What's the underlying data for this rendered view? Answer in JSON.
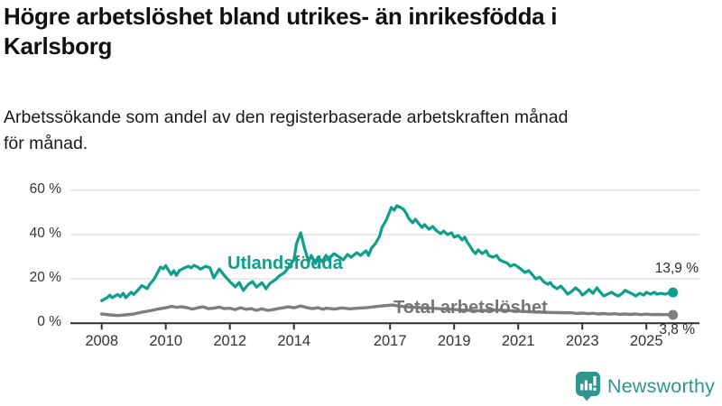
{
  "header": {
    "title_lines": [
      "Högre arbetslöshet bland utrikes- än inrikesfödda i",
      "Karlsborg"
    ],
    "title_text": "Högre arbetslöshet bland utrikes- än inrikesfödda i Karlsborg",
    "subtitle_lines": [
      "Arbetssökande som andel av den registerbaserade arbetskraften månad",
      "för månad."
    ],
    "subtitle_text": "Arbetssökande som andel av den registerbaserade arbetskraften månad för månad."
  },
  "branding": {
    "logo_text": "Newsworthy",
    "logo_icon": "bar-chart-speech-bubble-icon",
    "logo_color": "#2E968C"
  },
  "colors": {
    "accent_teal": "#0D9E8C",
    "line_gray": "#7E7E7E",
    "label_gray": "#757575",
    "axis": "#2e2e2e",
    "gridline": "#dcdcdc",
    "text": "#333333",
    "title": "#111111",
    "background": "#ffffff"
  },
  "chart_data": {
    "type": "line",
    "title": "Högre arbetslöshet bland utrikes- än inrikesfödda i Karlsborg",
    "subtitle": "Arbetssökande som andel av den registerbaserade arbetskraften månad för månad.",
    "unit": "%",
    "grid": "horizontal",
    "legend": "inline-labels",
    "x_axis": {
      "ticks": [
        2008,
        2010,
        2012,
        2014,
        2017,
        2019,
        2021,
        2023,
        2025
      ],
      "range": [
        2008,
        2025.9
      ]
    },
    "y_axis": {
      "ticks": [
        {
          "value": 0,
          "label": "0 %"
        },
        {
          "value": 20,
          "label": "20 %"
        },
        {
          "value": 40,
          "label": "40 %"
        },
        {
          "value": 60,
          "label": "60 %"
        }
      ],
      "range": [
        0,
        60
      ]
    },
    "series": [
      {
        "name": "Utlandsfödda",
        "color": "#0D9E8C",
        "end_label": "13,9 %",
        "end_value": 13.9,
        "points": [
          [
            2008.0,
            10.2
          ],
          [
            2008.17,
            11.5
          ],
          [
            2008.25,
            12.7
          ],
          [
            2008.33,
            11.5
          ],
          [
            2008.5,
            13.0
          ],
          [
            2008.58,
            12.0
          ],
          [
            2008.67,
            13.5
          ],
          [
            2008.75,
            11.5
          ],
          [
            2008.92,
            14.0
          ],
          [
            2009.0,
            13.0
          ],
          [
            2009.17,
            15.6
          ],
          [
            2009.25,
            17.0
          ],
          [
            2009.42,
            15.6
          ],
          [
            2009.5,
            17.6
          ],
          [
            2009.62,
            19.6
          ],
          [
            2009.75,
            22.9
          ],
          [
            2009.83,
            25.3
          ],
          [
            2009.92,
            24.6
          ],
          [
            2010.0,
            26.0
          ],
          [
            2010.08,
            24.0
          ],
          [
            2010.17,
            22.0
          ],
          [
            2010.25,
            23.7
          ],
          [
            2010.33,
            21.6
          ],
          [
            2010.42,
            23.7
          ],
          [
            2010.58,
            25.0
          ],
          [
            2010.71,
            25.7
          ],
          [
            2010.79,
            25.0
          ],
          [
            2010.88,
            26.1
          ],
          [
            2011.0,
            25.3
          ],
          [
            2011.08,
            24.4
          ],
          [
            2011.25,
            25.7
          ],
          [
            2011.38,
            25.0
          ],
          [
            2011.5,
            20.5
          ],
          [
            2011.67,
            24.5
          ],
          [
            2011.83,
            21.5
          ],
          [
            2012.0,
            18.8
          ],
          [
            2012.17,
            16.4
          ],
          [
            2012.29,
            18.4
          ],
          [
            2012.42,
            14.8
          ],
          [
            2012.58,
            17.6
          ],
          [
            2012.71,
            18.8
          ],
          [
            2012.83,
            16.3
          ],
          [
            2013.0,
            18.3
          ],
          [
            2013.13,
            15.6
          ],
          [
            2013.25,
            18.0
          ],
          [
            2013.42,
            19.6
          ],
          [
            2013.54,
            21.3
          ],
          [
            2013.71,
            22.9
          ],
          [
            2013.83,
            25.3
          ],
          [
            2014.0,
            28.6
          ],
          [
            2014.08,
            35.9
          ],
          [
            2014.21,
            40.8
          ],
          [
            2014.33,
            33.9
          ],
          [
            2014.46,
            27.8
          ],
          [
            2014.54,
            30.6
          ],
          [
            2014.67,
            27.0
          ],
          [
            2014.75,
            29.8
          ],
          [
            2014.88,
            27.8
          ],
          [
            2015.0,
            30.6
          ],
          [
            2015.08,
            29.0
          ],
          [
            2015.25,
            31.4
          ],
          [
            2015.42,
            29.8
          ],
          [
            2015.54,
            28.6
          ],
          [
            2015.67,
            31.0
          ],
          [
            2015.79,
            29.8
          ],
          [
            2015.96,
            31.8
          ],
          [
            2016.08,
            30.6
          ],
          [
            2016.25,
            32.7
          ],
          [
            2016.33,
            30.6
          ],
          [
            2016.42,
            33.9
          ],
          [
            2016.54,
            35.9
          ],
          [
            2016.67,
            39.2
          ],
          [
            2016.75,
            43.2
          ],
          [
            2016.88,
            46.5
          ],
          [
            2016.96,
            49.3
          ],
          [
            2017.04,
            52.2
          ],
          [
            2017.13,
            51.0
          ],
          [
            2017.21,
            53.0
          ],
          [
            2017.33,
            52.2
          ],
          [
            2017.42,
            51.4
          ],
          [
            2017.5,
            49.8
          ],
          [
            2017.58,
            47.3
          ],
          [
            2017.71,
            45.3
          ],
          [
            2017.79,
            46.9
          ],
          [
            2017.92,
            44.5
          ],
          [
            2018.0,
            43.2
          ],
          [
            2018.08,
            44.5
          ],
          [
            2018.21,
            42.4
          ],
          [
            2018.33,
            43.6
          ],
          [
            2018.46,
            41.6
          ],
          [
            2018.58,
            40.4
          ],
          [
            2018.67,
            41.6
          ],
          [
            2018.79,
            40.0
          ],
          [
            2018.92,
            40.8
          ],
          [
            2019.0,
            38.8
          ],
          [
            2019.13,
            39.6
          ],
          [
            2019.25,
            37.6
          ],
          [
            2019.33,
            38.8
          ],
          [
            2019.42,
            36.3
          ],
          [
            2019.5,
            34.7
          ],
          [
            2019.58,
            32.7
          ],
          [
            2019.67,
            31.4
          ],
          [
            2019.75,
            33.1
          ],
          [
            2019.88,
            31.4
          ],
          [
            2020.0,
            32.7
          ],
          [
            2020.08,
            30.6
          ],
          [
            2020.21,
            29.8
          ],
          [
            2020.33,
            30.6
          ],
          [
            2020.42,
            28.6
          ],
          [
            2020.54,
            27.8
          ],
          [
            2020.67,
            27.0
          ],
          [
            2020.75,
            25.7
          ],
          [
            2020.88,
            26.5
          ],
          [
            2021.0,
            25.3
          ],
          [
            2021.08,
            24.5
          ],
          [
            2021.21,
            22.9
          ],
          [
            2021.33,
            23.7
          ],
          [
            2021.46,
            21.6
          ],
          [
            2021.54,
            20.0
          ],
          [
            2021.67,
            20.8
          ],
          [
            2021.79,
            18.8
          ],
          [
            2021.92,
            17.6
          ],
          [
            2022.0,
            18.4
          ],
          [
            2022.08,
            16.8
          ],
          [
            2022.21,
            15.6
          ],
          [
            2022.33,
            16.8
          ],
          [
            2022.46,
            14.7
          ],
          [
            2022.54,
            13.1
          ],
          [
            2022.67,
            14.4
          ],
          [
            2022.79,
            16.0
          ],
          [
            2022.92,
            14.4
          ],
          [
            2023.0,
            12.7
          ],
          [
            2023.08,
            13.5
          ],
          [
            2023.21,
            15.2
          ],
          [
            2023.33,
            13.5
          ],
          [
            2023.46,
            16.0
          ],
          [
            2023.54,
            14.4
          ],
          [
            2023.67,
            12.3
          ],
          [
            2023.79,
            13.1
          ],
          [
            2023.92,
            14.0
          ],
          [
            2024.0,
            13.1
          ],
          [
            2024.13,
            12.3
          ],
          [
            2024.25,
            13.5
          ],
          [
            2024.33,
            14.8
          ],
          [
            2024.46,
            14.0
          ],
          [
            2024.58,
            13.1
          ],
          [
            2024.67,
            12.3
          ],
          [
            2024.79,
            13.5
          ],
          [
            2024.92,
            12.7
          ],
          [
            2025.0,
            14.0
          ],
          [
            2025.13,
            13.1
          ],
          [
            2025.25,
            14.0
          ],
          [
            2025.33,
            13.1
          ],
          [
            2025.46,
            13.5
          ],
          [
            2025.58,
            13.1
          ],
          [
            2025.67,
            13.5
          ],
          [
            2025.83,
            13.9
          ]
        ]
      },
      {
        "name": "Total arbetslöshet",
        "color": "#7E7E7E",
        "end_label": "3,8 %",
        "end_value": 3.8,
        "points": [
          [
            2008.0,
            4.2
          ],
          [
            2008.25,
            3.8
          ],
          [
            2008.5,
            3.5
          ],
          [
            2008.75,
            3.8
          ],
          [
            2009.0,
            4.2
          ],
          [
            2009.25,
            5.0
          ],
          [
            2009.5,
            5.6
          ],
          [
            2009.75,
            6.4
          ],
          [
            2010.0,
            7.0
          ],
          [
            2010.17,
            7.6
          ],
          [
            2010.33,
            7.2
          ],
          [
            2010.5,
            7.4
          ],
          [
            2010.67,
            7.0
          ],
          [
            2010.83,
            6.4
          ],
          [
            2011.0,
            7.0
          ],
          [
            2011.17,
            7.4
          ],
          [
            2011.33,
            6.6
          ],
          [
            2011.5,
            6.8
          ],
          [
            2011.67,
            7.3
          ],
          [
            2011.83,
            6.6
          ],
          [
            2012.0,
            6.8
          ],
          [
            2012.17,
            6.2
          ],
          [
            2012.33,
            7.0
          ],
          [
            2012.5,
            6.3
          ],
          [
            2012.67,
            6.6
          ],
          [
            2012.83,
            5.8
          ],
          [
            2013.0,
            6.5
          ],
          [
            2013.17,
            5.8
          ],
          [
            2013.33,
            6.1
          ],
          [
            2013.5,
            6.6
          ],
          [
            2013.67,
            7.0
          ],
          [
            2013.83,
            7.4
          ],
          [
            2014.0,
            7.0
          ],
          [
            2014.21,
            7.8
          ],
          [
            2014.42,
            7.0
          ],
          [
            2014.58,
            6.6
          ],
          [
            2014.75,
            7.0
          ],
          [
            2014.92,
            6.3
          ],
          [
            2015.0,
            6.8
          ],
          [
            2015.25,
            6.4
          ],
          [
            2015.5,
            6.9
          ],
          [
            2015.75,
            6.5
          ],
          [
            2016.0,
            6.8
          ],
          [
            2016.25,
            7.0
          ],
          [
            2016.5,
            7.4
          ],
          [
            2016.75,
            7.8
          ],
          [
            2016.92,
            8.0
          ],
          [
            2017.08,
            8.2
          ],
          [
            2017.25,
            7.8
          ],
          [
            2017.5,
            7.4
          ],
          [
            2017.75,
            7.2
          ],
          [
            2018.0,
            7.0
          ],
          [
            2018.25,
            6.8
          ],
          [
            2018.5,
            6.6
          ],
          [
            2018.75,
            6.4
          ],
          [
            2019.0,
            6.2
          ],
          [
            2019.25,
            6.0
          ],
          [
            2019.5,
            5.8
          ],
          [
            2019.75,
            5.6
          ],
          [
            2020.0,
            5.8
          ],
          [
            2020.25,
            6.0
          ],
          [
            2020.5,
            5.9
          ],
          [
            2020.75,
            5.7
          ],
          [
            2021.0,
            5.5
          ],
          [
            2021.25,
            5.3
          ],
          [
            2021.5,
            5.1
          ],
          [
            2021.75,
            5.0
          ],
          [
            2022.0,
            4.9
          ],
          [
            2022.25,
            4.8
          ],
          [
            2022.5,
            4.7
          ],
          [
            2022.67,
            4.7
          ],
          [
            2022.83,
            4.4
          ],
          [
            2023.0,
            4.6
          ],
          [
            2023.17,
            4.3
          ],
          [
            2023.33,
            4.5
          ],
          [
            2023.5,
            4.2
          ],
          [
            2023.67,
            4.4
          ],
          [
            2023.83,
            4.1
          ],
          [
            2024.0,
            4.3
          ],
          [
            2024.17,
            4.0
          ],
          [
            2024.33,
            4.2
          ],
          [
            2024.5,
            4.0
          ],
          [
            2024.67,
            4.2
          ],
          [
            2024.83,
            3.9
          ],
          [
            2025.0,
            4.1
          ],
          [
            2025.17,
            3.9
          ],
          [
            2025.33,
            4.0
          ],
          [
            2025.5,
            3.9
          ],
          [
            2025.67,
            3.9
          ],
          [
            2025.83,
            3.8
          ]
        ]
      }
    ]
  }
}
